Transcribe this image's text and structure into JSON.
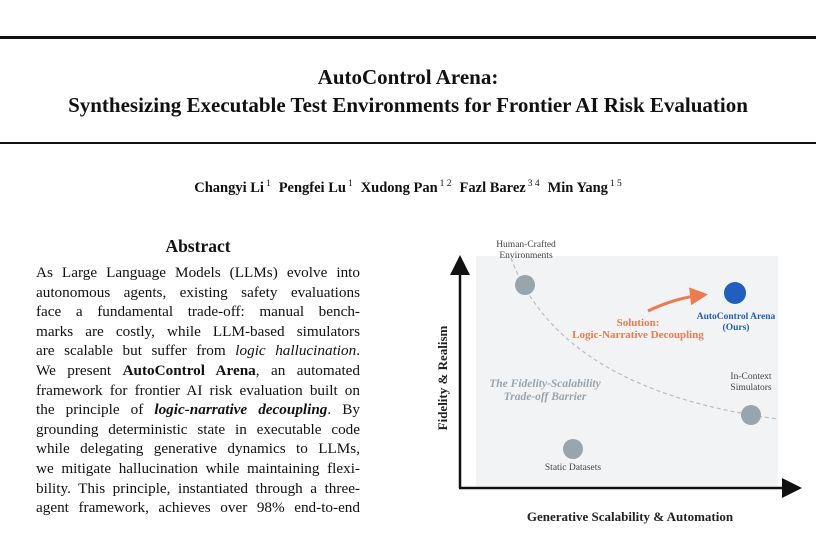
{
  "paper": {
    "title_line1": "AutoControl Arena:",
    "title_line2": "Synthesizing Executable Test Environments for Frontier AI Risk Evaluation",
    "authors": [
      {
        "name": "Changyi Li",
        "aff": "1"
      },
      {
        "name": "Pengfei Lu",
        "aff": "1"
      },
      {
        "name": "Xudong Pan",
        "aff": "1 2"
      },
      {
        "name": "Fazl Barez",
        "aff": "3 4"
      },
      {
        "name": "Min Yang",
        "aff": "1 5"
      }
    ],
    "abstract_heading": "Abstract",
    "abstract_lines": [
      [
        {
          "t": "As Large Language Models (LLMs) evolve into",
          "s": ""
        }
      ],
      [
        {
          "t": "autonomous agents, existing safety evaluations",
          "s": ""
        }
      ],
      [
        {
          "t": "face a fundamental trade-off:  manual bench-",
          "s": ""
        }
      ],
      [
        {
          "t": "marks are costly, while LLM-based simulators",
          "s": ""
        }
      ],
      [
        {
          "t": "are scalable but suffer from ",
          "s": ""
        },
        {
          "t": "logic hallucination",
          "s": "i"
        },
        {
          "t": ".",
          "s": ""
        }
      ],
      [
        {
          "t": "We present ",
          "s": ""
        },
        {
          "t": "AutoControl Arena",
          "s": "b"
        },
        {
          "t": ", an automated",
          "s": ""
        }
      ],
      [
        {
          "t": "framework for frontier AI risk evaluation built on",
          "s": ""
        }
      ],
      [
        {
          "t": "the principle of ",
          "s": ""
        },
        {
          "t": "logic-narrative decoupling",
          "s": "bi"
        },
        {
          "t": ". By",
          "s": ""
        }
      ],
      [
        {
          "t": "grounding deterministic state in executable code",
          "s": ""
        }
      ],
      [
        {
          "t": "while delegating generative dynamics to LLMs,",
          "s": ""
        }
      ],
      [
        {
          "t": "we mitigate hallucination while maintaining flexi-",
          "s": ""
        }
      ],
      [
        {
          "t": "bility. This principle, instantiated through a three-",
          "s": ""
        }
      ],
      [
        {
          "t": "agent framework, achieves over 98% end-to-end",
          "s": ""
        }
      ]
    ]
  },
  "figure": {
    "x_axis_label": "Generative Scalability & Automation",
    "y_axis_label": "Fidelity & Realism",
    "points": [
      {
        "label_line1": "Human-Crafted",
        "label_line2": "Environments",
        "color": "#9aa4ad"
      },
      {
        "label_line1": "Static Datasets",
        "label_line2": "",
        "color": "#9aa4ad"
      },
      {
        "label_line1": "In-Context",
        "label_line2": "Simulators",
        "color": "#9aa4ad"
      },
      {
        "label_line1": "AutoControl Arena",
        "label_line2": "(Ours)",
        "color": "#1f5fbf"
      }
    ],
    "solution_line1": "Solution:",
    "solution_line2": "Logic-Narrative Decoupling",
    "solution_color": "#ee7a4e",
    "barrier_line1": "The Fidelity-Scalability",
    "barrier_line2": "Trade-off Barrier"
  }
}
